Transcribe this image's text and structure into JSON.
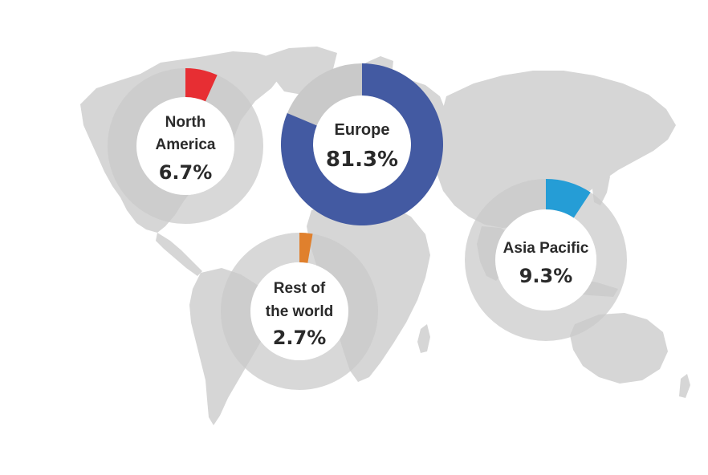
{
  "chart_data": {
    "type": "pie",
    "variant": "donut",
    "title": "",
    "slices": [
      {
        "label_lines": [
          "North",
          "America"
        ],
        "value": 6.7,
        "value_label": "6.7%",
        "color": "#e8252a"
      },
      {
        "label_lines": [
          "Europe"
        ],
        "value": 81.3,
        "value_label": "81.3%",
        "color": "#3d55a0"
      },
      {
        "label_lines": [
          "Rest of",
          "the world"
        ],
        "value": 2.7,
        "value_label": "2.7%",
        "color": "#e07b24"
      },
      {
        "label_lines": [
          "Asia Pacific"
        ],
        "value": 9.3,
        "value_label": "9.3%",
        "color": "#1b9ad6"
      }
    ],
    "track_color": "#c9c9c9",
    "map_color": "#d6d6d6",
    "legend": "none",
    "grid": false
  }
}
